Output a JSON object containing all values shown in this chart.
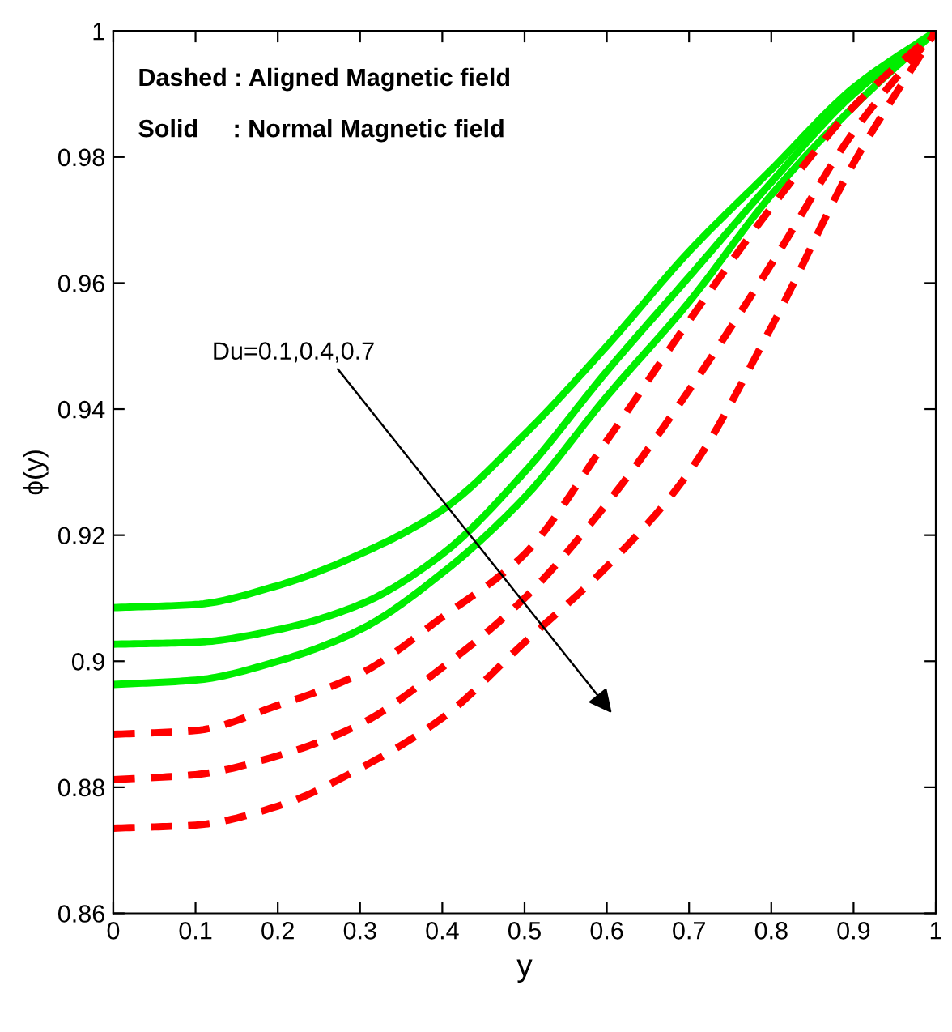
{
  "chart_data": {
    "type": "line",
    "xlabel": "y",
    "ylabel": "ϕ(y)",
    "x": [
      0,
      0.1,
      0.2,
      0.3,
      0.4,
      0.5,
      0.6,
      0.7,
      0.8,
      0.9,
      1
    ],
    "xlim": [
      0,
      1
    ],
    "xticks": [
      0,
      0.1,
      0.2,
      0.3,
      0.4,
      0.5,
      0.6,
      0.7,
      0.8,
      0.9,
      1
    ],
    "ylim": [
      0.86,
      1
    ],
    "yticks": [
      0.86,
      0.88,
      0.9,
      0.92,
      0.94,
      0.96,
      0.98,
      1
    ],
    "grid": false,
    "legend": false,
    "marker": "none",
    "series": [
      {
        "color": "#00ee00",
        "line_style": "solid",
        "values": [
          0.9085,
          0.909,
          0.912,
          0.917,
          0.924,
          0.936,
          0.95,
          0.965,
          0.978,
          0.991,
          1.0
        ]
      },
      {
        "color": "#00ee00",
        "line_style": "solid",
        "values": [
          0.9027,
          0.903,
          0.905,
          0.909,
          0.917,
          0.93,
          0.946,
          0.961,
          0.976,
          0.99,
          1.0
        ]
      },
      {
        "color": "#00ee00",
        "line_style": "solid",
        "values": [
          0.8963,
          0.897,
          0.9,
          0.905,
          0.914,
          0.926,
          0.942,
          0.957,
          0.974,
          0.988,
          1.0
        ]
      },
      {
        "color": "#ff0000",
        "line_style": "dashed",
        "values": [
          0.8884,
          0.889,
          0.893,
          0.898,
          0.907,
          0.917,
          0.935,
          0.954,
          0.972,
          0.988,
          1.0
        ]
      },
      {
        "color": "#ff0000",
        "line_style": "dashed",
        "values": [
          0.8812,
          0.882,
          0.885,
          0.89,
          0.899,
          0.91,
          0.925,
          0.943,
          0.963,
          0.984,
          1.0
        ]
      },
      {
        "color": "#ff0000",
        "line_style": "dashed",
        "values": [
          0.8735,
          0.874,
          0.877,
          0.883,
          0.891,
          0.903,
          0.915,
          0.93,
          0.953,
          0.979,
          1.0
        ]
      }
    ],
    "annotations": [
      "Dashed : Aligned Magnetic field",
      "Solid     : Normal Magnetic field",
      "Du=0.1,0.4,0.7"
    ]
  }
}
